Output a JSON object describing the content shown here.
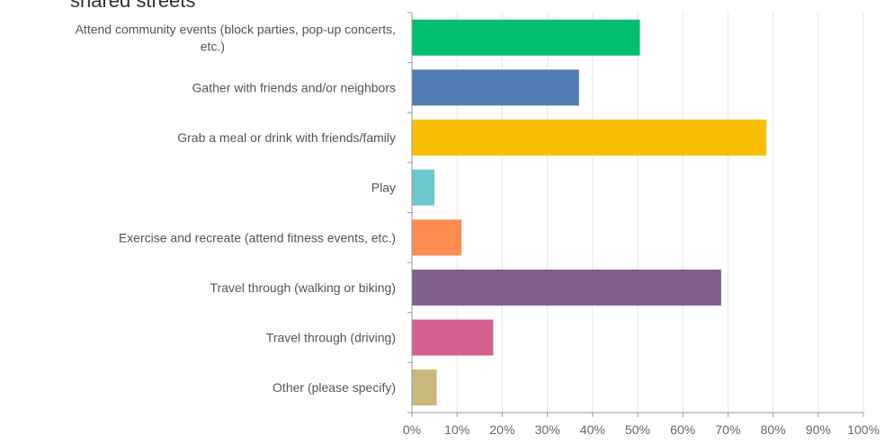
{
  "chart_data": {
    "type": "bar",
    "orientation": "horizontal",
    "title": "shared streets",
    "categories": [
      [
        "Attend community events (block parties, pop-up concerts,",
        "etc.)"
      ],
      [
        "Gather with friends and/or neighbors"
      ],
      [
        "Grab a meal or drink with friends/family"
      ],
      [
        "Play"
      ],
      [
        "Exercise and recreate (attend fitness events, etc.)"
      ],
      [
        "Travel through (walking or biking)"
      ],
      [
        "Travel through (driving)"
      ],
      [
        "Other (please specify)"
      ]
    ],
    "values": [
      50.5,
      37,
      78.5,
      5,
      11,
      68.5,
      18,
      5.5
    ],
    "colors": [
      "#00BF6F",
      "#507CB6",
      "#F9BE00",
      "#6BC8CD",
      "#FF8B4F",
      "#7F5F90",
      "#D25F90",
      "#C9B77B"
    ],
    "xlim": [
      0,
      100
    ],
    "xticks": [
      "0%",
      "10%",
      "20%",
      "30%",
      "40%",
      "50%",
      "60%",
      "70%",
      "80%",
      "90%",
      "100%"
    ],
    "xlabel": "",
    "ylabel": "",
    "grid": true,
    "legend": "none"
  }
}
